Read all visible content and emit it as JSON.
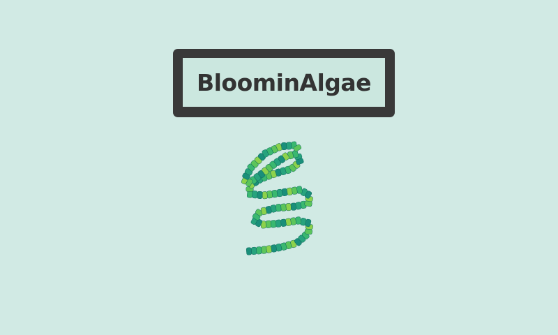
{
  "app": {
    "title": "BloominAlgae"
  },
  "logo": {
    "icon": "algae-spiral-icon",
    "palette": [
      "#1a8f7a",
      "#27a37d",
      "#3ab870",
      "#5cc55b",
      "#8dd24c",
      "#1f7f86"
    ]
  },
  "colors": {
    "background": "#d1eae4",
    "frame": "#393939",
    "title_fill": "#cbe7df",
    "title_text": "#333333"
  }
}
